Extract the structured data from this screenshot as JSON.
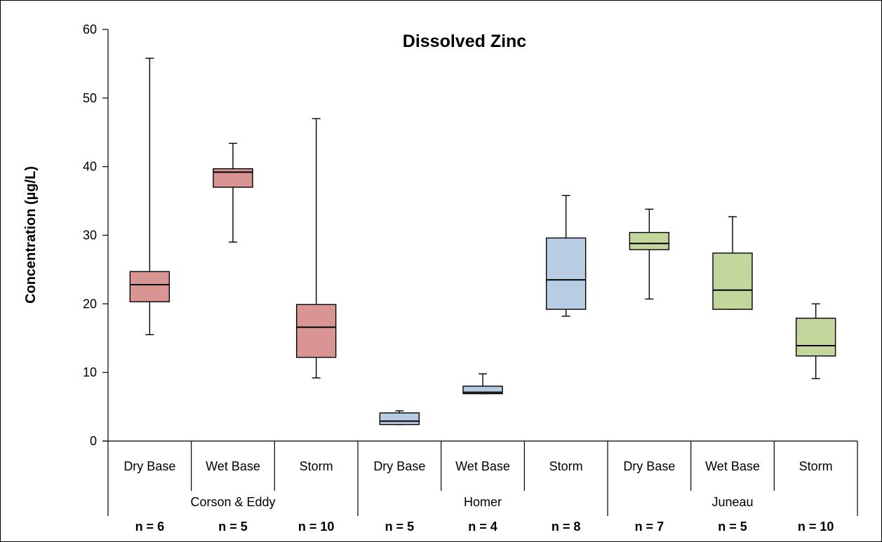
{
  "chart_data": {
    "type": "boxplot",
    "title": "Dissolved Zinc",
    "ylabel": "Concentration (µg/L)",
    "xlabel": "",
    "ylim": [
      0,
      60
    ],
    "yticks": [
      0,
      10,
      20,
      30,
      40,
      50,
      60
    ],
    "grid": false,
    "groups": [
      {
        "name": "Corson & Eddy",
        "color": "#d99594"
      },
      {
        "name": "Homer",
        "color": "#b8cce4"
      },
      {
        "name": "Juneau",
        "color": "#c3d69b"
      }
    ],
    "boxes": [
      {
        "group": "Corson & Eddy",
        "category": "Dry Base",
        "n_label": "n = 6",
        "min": 15.5,
        "q1": 20.3,
        "median": 22.8,
        "q3": 24.7,
        "max": 55.8
      },
      {
        "group": "Corson & Eddy",
        "category": "Wet Base",
        "n_label": "n = 5",
        "min": 29.0,
        "q1": 37.0,
        "median": 39.2,
        "q3": 39.7,
        "max": 43.4
      },
      {
        "group": "Corson & Eddy",
        "category": "Storm",
        "n_label": "n = 10",
        "min": 9.2,
        "q1": 12.2,
        "median": 16.6,
        "q3": 19.9,
        "max": 47.0
      },
      {
        "group": "Homer",
        "category": "Dry Base",
        "n_label": "n = 5",
        "min": 2.4,
        "q1": 2.4,
        "median": 2.9,
        "q3": 4.1,
        "max": 4.4
      },
      {
        "group": "Homer",
        "category": "Wet Base",
        "n_label": "n = 4",
        "min": 6.9,
        "q1": 6.9,
        "median": 7.1,
        "q3": 8.0,
        "max": 9.8
      },
      {
        "group": "Homer",
        "category": "Storm",
        "n_label": "n = 8",
        "min": 18.2,
        "q1": 19.2,
        "median": 23.5,
        "q3": 29.6,
        "max": 35.8
      },
      {
        "group": "Juneau",
        "category": "Dry Base",
        "n_label": "n = 7",
        "min": 20.7,
        "q1": 27.9,
        "median": 28.8,
        "q3": 30.4,
        "max": 33.8
      },
      {
        "group": "Juneau",
        "category": "Wet Base",
        "n_label": "n = 5",
        "min": 19.2,
        "q1": 19.2,
        "median": 22.0,
        "q3": 27.4,
        "max": 32.7
      },
      {
        "group": "Juneau",
        "category": "Storm",
        "n_label": "n = 10",
        "min": 9.1,
        "q1": 12.4,
        "median": 13.9,
        "q3": 17.9,
        "max": 20.0
      }
    ]
  }
}
